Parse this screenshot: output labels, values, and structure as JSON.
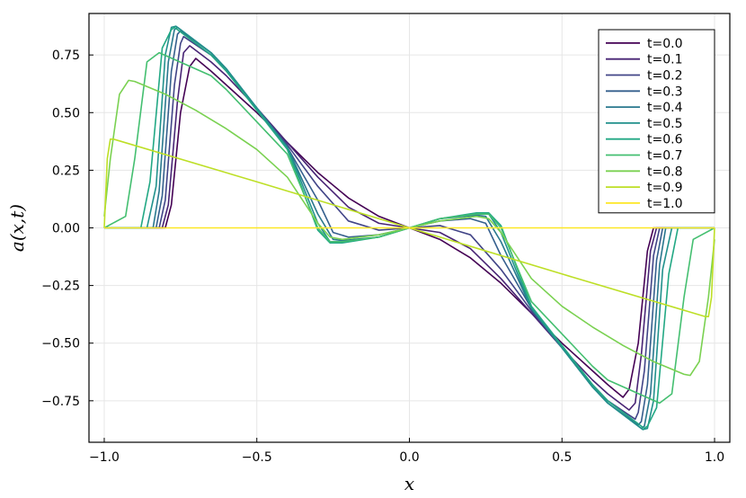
{
  "chart_data": {
    "type": "line",
    "xlabel": "x",
    "ylabel": "a(x,t)",
    "xlim": [
      -1.05,
      1.05
    ],
    "ylim": [
      -0.93,
      0.93
    ],
    "xticks": [
      -1.0,
      -0.5,
      0.0,
      0.5,
      1.0
    ],
    "xtick_labels": [
      "−1.0",
      "−0.5",
      "0.0",
      "0.5",
      "1.0"
    ],
    "yticks": [
      -0.75,
      -0.5,
      -0.25,
      0.0,
      0.25,
      0.5,
      0.75
    ],
    "ytick_labels": [
      "−0.75",
      "−0.50",
      "−0.25",
      "0.00",
      "0.25",
      "0.50",
      "0.75"
    ],
    "grid": true,
    "legend_position": "top-right",
    "series": [
      {
        "name": "t=0.0",
        "color": "#440154",
        "x": [
          -1.0,
          -0.8,
          -0.78,
          -0.75,
          -0.72,
          -0.7,
          -0.65,
          -0.6,
          -0.5,
          -0.4,
          -0.3,
          -0.2,
          -0.1,
          0.0,
          0.1,
          0.2,
          0.3,
          0.4,
          0.5,
          0.6,
          0.65,
          0.7,
          0.72,
          0.75,
          0.78,
          0.8,
          1.0
        ],
        "y": [
          0,
          0,
          0.1,
          0.5,
          0.7,
          0.735,
          0.68,
          0.62,
          0.5,
          0.37,
          0.24,
          0.13,
          0.05,
          0,
          -0.05,
          -0.13,
          -0.24,
          -0.37,
          -0.5,
          -0.62,
          -0.68,
          -0.735,
          -0.7,
          -0.5,
          -0.1,
          0,
          0
        ]
      },
      {
        "name": "t=0.1",
        "color": "#482475",
        "x": [
          -1.0,
          -0.81,
          -0.79,
          -0.76,
          -0.74,
          -0.72,
          -0.65,
          -0.6,
          -0.5,
          -0.4,
          -0.3,
          -0.2,
          -0.1,
          0.0,
          0.1,
          0.2,
          0.3,
          0.4,
          0.5,
          0.6,
          0.65,
          0.72,
          0.74,
          0.76,
          0.79,
          0.81,
          1.0
        ],
        "y": [
          0,
          0,
          0.1,
          0.55,
          0.76,
          0.79,
          0.72,
          0.66,
          0.52,
          0.37,
          0.22,
          0.09,
          0.02,
          0,
          -0.02,
          -0.09,
          -0.22,
          -0.37,
          -0.52,
          -0.66,
          -0.72,
          -0.79,
          -0.76,
          -0.55,
          -0.1,
          0,
          0
        ]
      },
      {
        "name": "t=0.2",
        "color": "#414487",
        "x": [
          -1.0,
          -0.82,
          -0.8,
          -0.77,
          -0.75,
          -0.74,
          -0.65,
          -0.6,
          -0.5,
          -0.4,
          -0.3,
          -0.2,
          -0.1,
          0.0,
          0.1,
          0.2,
          0.3,
          0.4,
          0.5,
          0.6,
          0.65,
          0.74,
          0.75,
          0.77,
          0.8,
          0.82,
          1.0
        ],
        "y": [
          0,
          0,
          0.12,
          0.62,
          0.8,
          0.83,
          0.75,
          0.68,
          0.52,
          0.36,
          0.18,
          0.03,
          -0.01,
          0,
          0.01,
          -0.03,
          -0.18,
          -0.36,
          -0.52,
          -0.68,
          -0.75,
          -0.83,
          -0.8,
          -0.62,
          -0.12,
          0,
          0
        ]
      },
      {
        "name": "t=0.3",
        "color": "#355f8d",
        "x": [
          -1.0,
          -0.83,
          -0.81,
          -0.78,
          -0.76,
          -0.75,
          -0.65,
          -0.6,
          -0.5,
          -0.4,
          -0.3,
          -0.25,
          -0.2,
          -0.1,
          0.0,
          0.1,
          0.2,
          0.25,
          0.3,
          0.4,
          0.5,
          0.6,
          0.65,
          0.75,
          0.76,
          0.78,
          0.81,
          0.83,
          1.0
        ],
        "y": [
          0,
          0,
          0.14,
          0.68,
          0.84,
          0.855,
          0.76,
          0.69,
          0.52,
          0.35,
          0.12,
          -0.02,
          -0.04,
          -0.03,
          0,
          0.03,
          0.04,
          0.02,
          -0.12,
          -0.35,
          -0.52,
          -0.69,
          -0.76,
          -0.855,
          -0.84,
          -0.68,
          -0.14,
          0,
          0
        ]
      },
      {
        "name": "t=0.4",
        "color": "#2a788e",
        "x": [
          -1.0,
          -0.84,
          -0.82,
          -0.79,
          -0.77,
          -0.76,
          -0.65,
          -0.6,
          -0.5,
          -0.4,
          -0.3,
          -0.25,
          -0.22,
          -0.1,
          0.0,
          0.1,
          0.22,
          0.25,
          0.3,
          0.4,
          0.5,
          0.6,
          0.65,
          0.76,
          0.77,
          0.79,
          0.82,
          0.84,
          1.0
        ],
        "y": [
          0,
          0,
          0.16,
          0.72,
          0.86,
          0.87,
          0.76,
          0.69,
          0.52,
          0.35,
          0.06,
          -0.05,
          -0.055,
          -0.04,
          0,
          0.04,
          0.055,
          0.05,
          -0.06,
          -0.35,
          -0.52,
          -0.69,
          -0.76,
          -0.87,
          -0.86,
          -0.72,
          -0.16,
          0,
          0
        ]
      },
      {
        "name": "t=0.5",
        "color": "#21918c",
        "x": [
          -1.0,
          -0.86,
          -0.83,
          -0.8,
          -0.78,
          -0.765,
          -0.65,
          -0.6,
          -0.5,
          -0.4,
          -0.3,
          -0.26,
          -0.22,
          -0.1,
          0.0,
          0.1,
          0.22,
          0.26,
          0.3,
          0.4,
          0.5,
          0.6,
          0.65,
          0.765,
          0.78,
          0.8,
          0.83,
          0.86,
          1.0
        ],
        "y": [
          0,
          0,
          0.18,
          0.75,
          0.87,
          0.875,
          0.76,
          0.69,
          0.52,
          0.35,
          0.02,
          -0.06,
          -0.06,
          -0.04,
          0,
          0.04,
          0.06,
          0.06,
          -0.02,
          -0.35,
          -0.52,
          -0.69,
          -0.76,
          -0.875,
          -0.87,
          -0.75,
          -0.18,
          0,
          0
        ]
      },
      {
        "name": "t=0.6",
        "color": "#22a884",
        "x": [
          -1.0,
          -0.88,
          -0.85,
          -0.81,
          -0.78,
          -0.77,
          -0.65,
          -0.6,
          -0.5,
          -0.4,
          -0.3,
          -0.26,
          -0.22,
          -0.1,
          0.0,
          0.1,
          0.22,
          0.26,
          0.3,
          0.4,
          0.5,
          0.6,
          0.65,
          0.77,
          0.78,
          0.81,
          0.85,
          0.88,
          1.0
        ],
        "y": [
          0,
          0,
          0.2,
          0.78,
          0.86,
          0.87,
          0.75,
          0.68,
          0.51,
          0.34,
          -0.01,
          -0.065,
          -0.065,
          -0.04,
          0,
          0.04,
          0.065,
          0.065,
          0.01,
          -0.34,
          -0.51,
          -0.68,
          -0.75,
          -0.87,
          -0.86,
          -0.78,
          -0.2,
          0,
          0
        ]
      },
      {
        "name": "t=0.7",
        "color": "#44bf70",
        "x": [
          -1.0,
          -0.93,
          -0.9,
          -0.86,
          -0.82,
          -0.65,
          -0.6,
          -0.5,
          -0.4,
          -0.3,
          -0.26,
          -0.22,
          -0.1,
          0.0,
          0.1,
          0.22,
          0.26,
          0.3,
          0.4,
          0.5,
          0.6,
          0.65,
          0.82,
          0.86,
          0.9,
          0.93,
          1.0
        ],
        "y": [
          0,
          0.05,
          0.3,
          0.72,
          0.76,
          0.66,
          0.6,
          0.46,
          0.32,
          0.0,
          -0.06,
          -0.06,
          -0.04,
          0,
          0.04,
          0.06,
          0.06,
          0.0,
          -0.32,
          -0.46,
          -0.6,
          -0.66,
          -0.76,
          -0.72,
          -0.3,
          -0.05,
          0
        ]
      },
      {
        "name": "t=0.8",
        "color": "#7ad151",
        "x": [
          -1.0,
          -0.98,
          -0.95,
          -0.92,
          -0.9,
          -0.8,
          -0.7,
          -0.6,
          -0.5,
          -0.4,
          -0.3,
          -0.26,
          -0.22,
          -0.1,
          0.0,
          0.1,
          0.22,
          0.26,
          0.3,
          0.4,
          0.5,
          0.6,
          0.7,
          0.8,
          0.9,
          0.92,
          0.95,
          0.98,
          1.0
        ],
        "y": [
          0.05,
          0.3,
          0.58,
          0.64,
          0.635,
          0.58,
          0.51,
          0.43,
          0.34,
          0.22,
          0.02,
          -0.04,
          -0.05,
          -0.03,
          0,
          0.03,
          0.05,
          0.04,
          -0.02,
          -0.22,
          -0.34,
          -0.43,
          -0.51,
          -0.58,
          -0.635,
          -0.64,
          -0.58,
          -0.3,
          -0.05
        ]
      },
      {
        "name": "t=0.9",
        "color": "#bddf26",
        "x": [
          -1.0,
          -0.99,
          -0.98,
          -0.97,
          -0.5,
          0.0,
          0.5,
          0.97,
          0.98,
          0.99,
          1.0
        ],
        "y": [
          0.0,
          0.3,
          0.385,
          0.385,
          0.2,
          0,
          -0.2,
          -0.385,
          -0.385,
          -0.3,
          0.0
        ]
      },
      {
        "name": "t=1.0",
        "color": "#fde725",
        "x": [
          -1.0,
          1.0
        ],
        "y": [
          0,
          0
        ]
      }
    ]
  }
}
